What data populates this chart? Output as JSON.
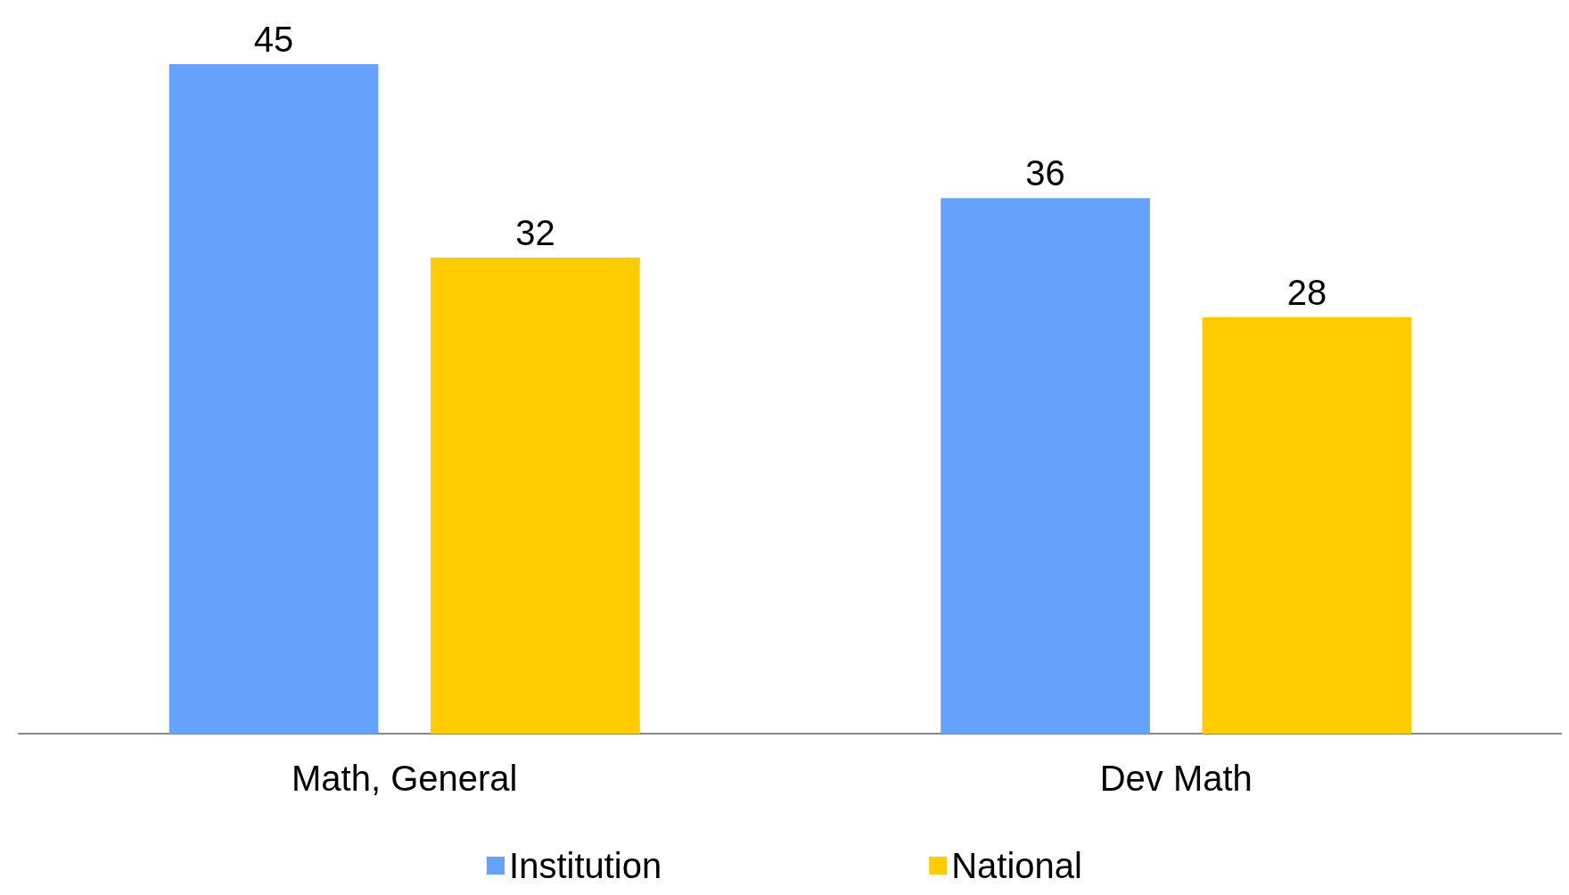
{
  "chart_data": {
    "type": "bar",
    "categories": [
      "Math, General",
      "Dev Math"
    ],
    "series": [
      {
        "name": "Institution",
        "color": "#66a3ff",
        "values": [
          45,
          36
        ]
      },
      {
        "name": "National",
        "color": "#ffcc00",
        "values": [
          32,
          28
        ]
      }
    ],
    "data_labels": true,
    "legend": "bottom"
  }
}
